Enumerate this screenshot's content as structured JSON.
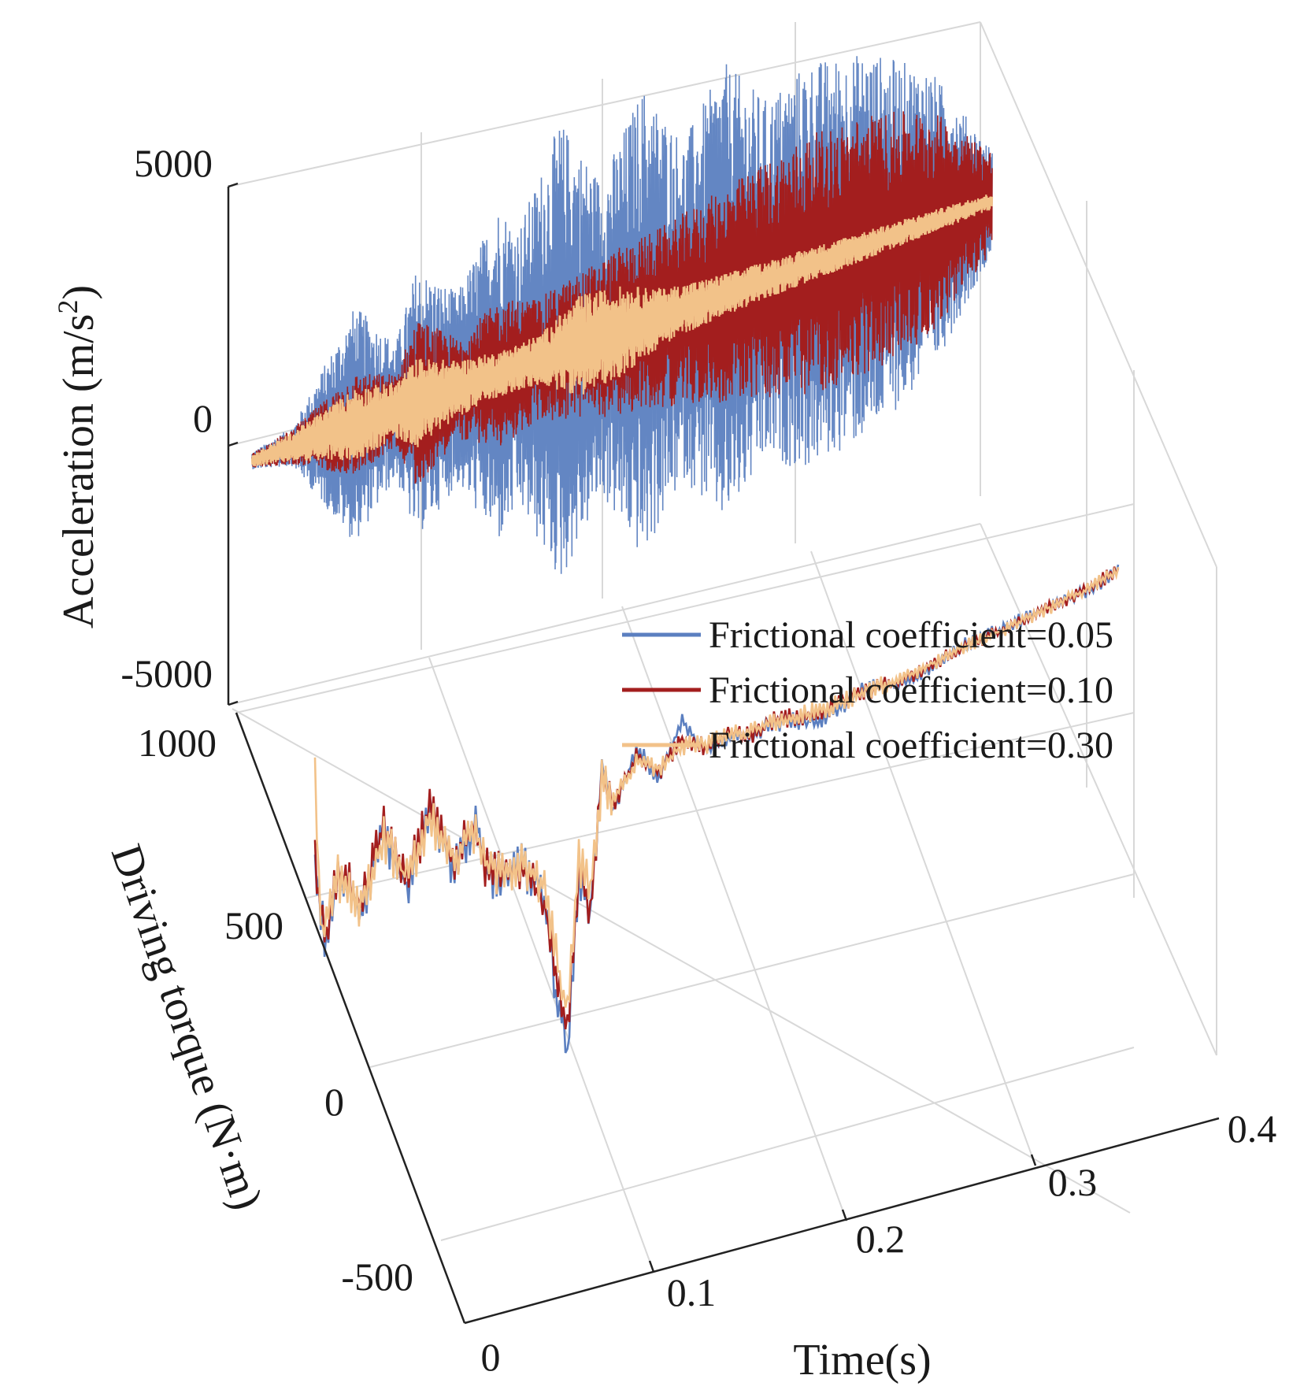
{
  "chart_data": {
    "type": "line",
    "projection": "3d",
    "title": "",
    "xlabel": "Time(s)",
    "x_ticks": [
      "0",
      "0.1",
      "0.2",
      "0.3",
      "0.4"
    ],
    "xlim": [
      0,
      0.4
    ],
    "panels": [
      {
        "name": "acceleration",
        "ylabel_main": "Acceleration (m/s",
        "ylabel_sup": "2",
        "ylabel_close": ")",
        "y_ticks": [
          "5000",
          "0",
          "-5000"
        ],
        "ylim": [
          -5000,
          5000
        ]
      },
      {
        "name": "torque",
        "ylabel": "Driving torque (N·m)",
        "y_ticks": [
          "1000",
          "500",
          "0",
          "-500"
        ],
        "ylim": [
          -500,
          1000
        ]
      }
    ],
    "series": [
      {
        "name": "Frictional coefficient=0.05",
        "color": "#5b7fc0",
        "acc_envelope": [
          [
            0.0,
            150
          ],
          [
            0.02,
            350
          ],
          [
            0.05,
            2100
          ],
          [
            0.07,
            1200
          ],
          [
            0.08,
            2400
          ],
          [
            0.1,
            1700
          ],
          [
            0.12,
            3000
          ],
          [
            0.13,
            2500
          ],
          [
            0.15,
            4100
          ],
          [
            0.17,
            2800
          ],
          [
            0.19,
            4200
          ],
          [
            0.21,
            3000
          ],
          [
            0.23,
            4100
          ],
          [
            0.25,
            3200
          ],
          [
            0.27,
            3600
          ],
          [
            0.3,
            3400
          ],
          [
            0.33,
            2700
          ],
          [
            0.36,
            900
          ]
        ],
        "torque": [
          [
            0.0,
            450
          ],
          [
            0.005,
            230
          ],
          [
            0.01,
            420
          ],
          [
            0.02,
            300
          ],
          [
            0.03,
            480
          ],
          [
            0.04,
            330
          ],
          [
            0.05,
            520
          ],
          [
            0.06,
            350
          ],
          [
            0.07,
            450
          ],
          [
            0.075,
            310
          ],
          [
            0.08,
            300
          ],
          [
            0.09,
            310
          ],
          [
            0.1,
            220
          ],
          [
            0.105,
            -20
          ],
          [
            0.11,
            -180
          ],
          [
            0.115,
            250
          ],
          [
            0.12,
            150
          ],
          [
            0.125,
            500
          ],
          [
            0.13,
            380
          ],
          [
            0.14,
            520
          ],
          [
            0.15,
            440
          ],
          [
            0.16,
            560
          ],
          [
            0.17,
            470
          ],
          [
            0.18,
            490
          ],
          [
            0.19,
            480
          ],
          [
            0.2,
            500
          ],
          [
            0.22,
            470
          ],
          [
            0.24,
            520
          ],
          [
            0.26,
            510
          ],
          [
            0.28,
            560
          ],
          [
            0.3,
            580
          ],
          [
            0.32,
            600
          ],
          [
            0.34,
            620
          ],
          [
            0.35,
            650
          ]
        ]
      },
      {
        "name": "Frictional coefficient=0.10",
        "color": "#a31e1e",
        "acc_envelope": [
          [
            0.0,
            130
          ],
          [
            0.02,
            320
          ],
          [
            0.05,
            900
          ],
          [
            0.07,
            650
          ],
          [
            0.08,
            1500
          ],
          [
            0.1,
            900
          ],
          [
            0.12,
            1300
          ],
          [
            0.14,
            1100
          ],
          [
            0.16,
            1300
          ],
          [
            0.18,
            1500
          ],
          [
            0.2,
            1600
          ],
          [
            0.22,
            1800
          ],
          [
            0.24,
            2000
          ],
          [
            0.27,
            2300
          ],
          [
            0.3,
            2300
          ],
          [
            0.33,
            2000
          ],
          [
            0.36,
            900
          ]
        ],
        "torque": [
          [
            0.0,
            460
          ],
          [
            0.005,
            240
          ],
          [
            0.01,
            430
          ],
          [
            0.02,
            320
          ],
          [
            0.03,
            490
          ],
          [
            0.04,
            340
          ],
          [
            0.05,
            510
          ],
          [
            0.06,
            360
          ],
          [
            0.07,
            440
          ],
          [
            0.075,
            320
          ],
          [
            0.08,
            305
          ],
          [
            0.09,
            300
          ],
          [
            0.1,
            210
          ],
          [
            0.105,
            10
          ],
          [
            0.11,
            -130
          ],
          [
            0.115,
            260
          ],
          [
            0.12,
            170
          ],
          [
            0.125,
            470
          ],
          [
            0.13,
            400
          ],
          [
            0.14,
            500
          ],
          [
            0.15,
            450
          ],
          [
            0.16,
            520
          ],
          [
            0.17,
            480
          ],
          [
            0.18,
            495
          ],
          [
            0.19,
            485
          ],
          [
            0.2,
            500
          ],
          [
            0.22,
            490
          ],
          [
            0.24,
            515
          ],
          [
            0.26,
            520
          ],
          [
            0.28,
            555
          ],
          [
            0.3,
            575
          ],
          [
            0.32,
            600
          ],
          [
            0.34,
            625
          ],
          [
            0.35,
            650
          ]
        ]
      },
      {
        "name": "Frictional coefficient=0.30",
        "color": "#f2c289",
        "acc_envelope": [
          [
            0.0,
            110
          ],
          [
            0.02,
            260
          ],
          [
            0.05,
            650
          ],
          [
            0.07,
            500
          ],
          [
            0.08,
            800
          ],
          [
            0.1,
            500
          ],
          [
            0.12,
            400
          ],
          [
            0.14,
            450
          ],
          [
            0.16,
            900
          ],
          [
            0.18,
            800
          ],
          [
            0.2,
            500
          ],
          [
            0.22,
            400
          ],
          [
            0.24,
            350
          ],
          [
            0.27,
            300
          ],
          [
            0.3,
            250
          ],
          [
            0.33,
            200
          ],
          [
            0.36,
            150
          ]
        ],
        "torque": [
          [
            0.0,
            650
          ],
          [
            0.003,
            250
          ],
          [
            0.01,
            400
          ],
          [
            0.02,
            320
          ],
          [
            0.03,
            470
          ],
          [
            0.04,
            350
          ],
          [
            0.05,
            490
          ],
          [
            0.06,
            370
          ],
          [
            0.07,
            430
          ],
          [
            0.075,
            330
          ],
          [
            0.08,
            310
          ],
          [
            0.09,
            305
          ],
          [
            0.1,
            240
          ],
          [
            0.105,
            80
          ],
          [
            0.11,
            -80
          ],
          [
            0.115,
            280
          ],
          [
            0.12,
            200
          ],
          [
            0.125,
            460
          ],
          [
            0.13,
            410
          ],
          [
            0.14,
            490
          ],
          [
            0.15,
            460
          ],
          [
            0.16,
            500
          ],
          [
            0.17,
            485
          ],
          [
            0.18,
            495
          ],
          [
            0.19,
            490
          ],
          [
            0.2,
            500
          ],
          [
            0.22,
            495
          ],
          [
            0.24,
            515
          ],
          [
            0.26,
            525
          ],
          [
            0.28,
            555
          ],
          [
            0.3,
            575
          ],
          [
            0.32,
            600
          ],
          [
            0.34,
            625
          ],
          [
            0.35,
            650
          ]
        ]
      }
    ],
    "legend_position": "center-right"
  }
}
